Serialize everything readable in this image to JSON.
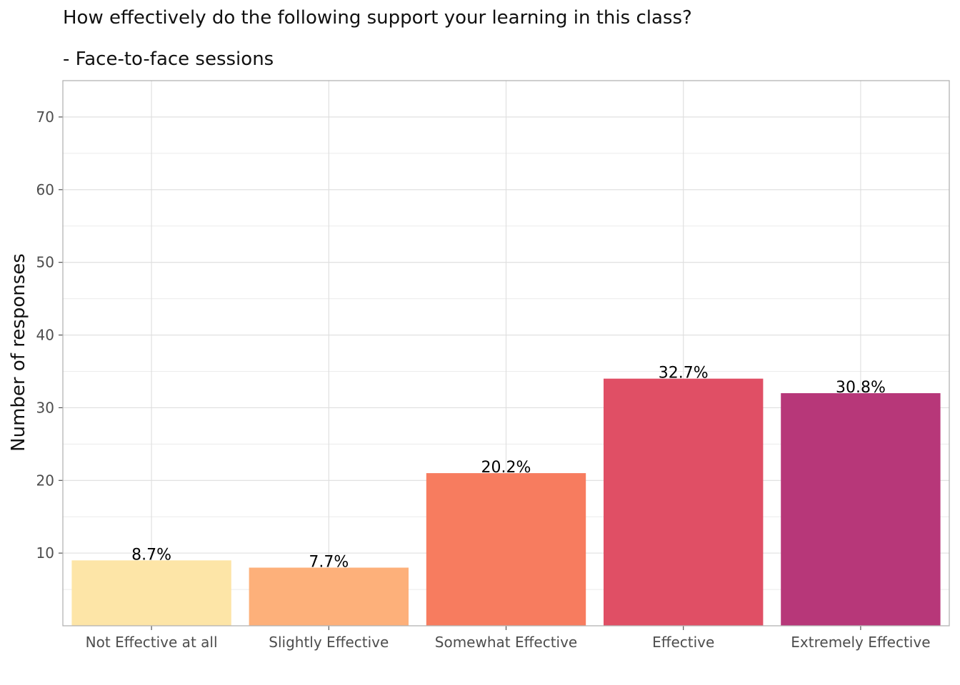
{
  "chart_data": {
    "type": "bar",
    "title": "How effectively do the following support your learning in this class?",
    "subtitle": "- Face-to-face sessions",
    "xlabel": "",
    "ylabel": "Number of responses",
    "categories": [
      "Not Effective at all",
      "Slightly Effective",
      "Somewhat Effective",
      "Effective",
      "Extremely Effective"
    ],
    "values": [
      9,
      8,
      21,
      34,
      32
    ],
    "labels": [
      "8.7%",
      "7.7%",
      "20.2%",
      "32.7%",
      "30.8%"
    ],
    "colors": [
      "#fde5a7",
      "#fdb07a",
      "#f77c5f",
      "#e04f65",
      "#b73779"
    ],
    "ylim": [
      0,
      75
    ],
    "yticks": [
      10,
      20,
      30,
      40,
      50,
      60,
      70
    ],
    "grid": true,
    "legend": "none"
  }
}
